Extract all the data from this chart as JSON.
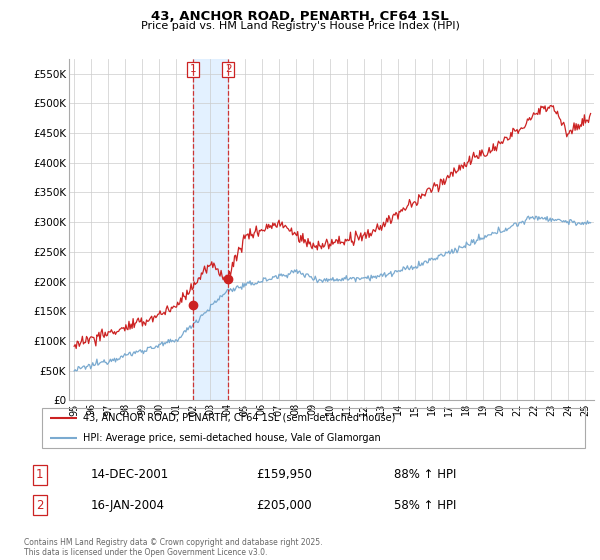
{
  "title": "43, ANCHOR ROAD, PENARTH, CF64 1SL",
  "subtitle": "Price paid vs. HM Land Registry's House Price Index (HPI)",
  "legend_line1": "43, ANCHOR ROAD, PENARTH, CF64 1SL (semi-detached house)",
  "legend_line2": "HPI: Average price, semi-detached house, Vale of Glamorgan",
  "transaction1_date": "14-DEC-2001",
  "transaction1_price": "£159,950",
  "transaction1_hpi": "88% ↑ HPI",
  "transaction1_x": 2001.96,
  "transaction1_y": 159950,
  "transaction2_date": "16-JAN-2004",
  "transaction2_price": "£205,000",
  "transaction2_hpi": "58% ↑ HPI",
  "transaction2_x": 2004.04,
  "transaction2_y": 205000,
  "hpi_color": "#7aaad0",
  "price_color": "#cc2222",
  "vline_color": "#cc2222",
  "shade_color": "#ddeeff",
  "footnote": "Contains HM Land Registry data © Crown copyright and database right 2025.\nThis data is licensed under the Open Government Licence v3.0.",
  "ylim": [
    0,
    575000
  ],
  "xlim": [
    1994.7,
    2025.5
  ],
  "yticks": [
    0,
    50000,
    100000,
    150000,
    200000,
    250000,
    300000,
    350000,
    400000,
    450000,
    500000,
    550000
  ],
  "ytick_labels": [
    "£0",
    "£50K",
    "£100K",
    "£150K",
    "£200K",
    "£250K",
    "£300K",
    "£350K",
    "£400K",
    "£450K",
    "£500K",
    "£550K"
  ],
  "xtick_labels": [
    "95",
    "96",
    "97",
    "98",
    "99",
    "00",
    "01",
    "02",
    "03",
    "04",
    "05",
    "06",
    "07",
    "08",
    "09",
    "10",
    "11",
    "12",
    "13",
    "14",
    "15",
    "16",
    "17",
    "18",
    "19",
    "20",
    "21",
    "22",
    "23",
    "24",
    "25"
  ],
  "xticks": [
    1995,
    1996,
    1997,
    1998,
    1999,
    2000,
    2001,
    2002,
    2003,
    2004,
    2005,
    2006,
    2007,
    2008,
    2009,
    2010,
    2011,
    2012,
    2013,
    2014,
    2015,
    2016,
    2017,
    2018,
    2019,
    2020,
    2021,
    2022,
    2023,
    2024,
    2025
  ]
}
